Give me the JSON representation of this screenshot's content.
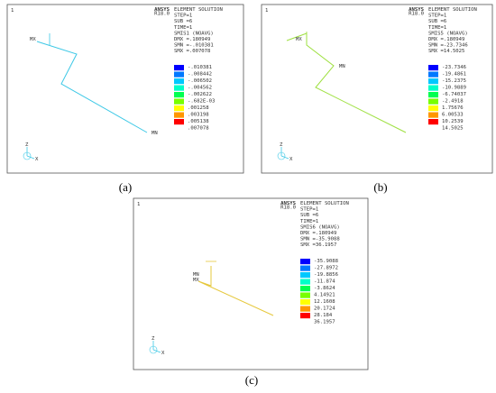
{
  "panels": [
    {
      "caption": "(a)",
      "logo": "ANSYS",
      "version": "R18.0",
      "view": "1",
      "header": [
        "ELEMENT SOLUTION",
        "STEP=1",
        "SUB =6",
        "TIME=1",
        "SMIS1    (NOAVG)",
        "DMX =.180949",
        "SMN =-.010381",
        "SMX =.007078"
      ],
      "legend": {
        "colors": [
          "#0000ff",
          "#0078ff",
          "#00c8ff",
          "#00ffc8",
          "#00ff50",
          "#78ff00",
          "#ffff00",
          "#ff9600",
          "#ff0000"
        ],
        "values": [
          "-.010381",
          "-.008442",
          "-.006502",
          "-.004562",
          "-.002622",
          "-.682E-03",
          ".001258",
          ".003198",
          ".005138",
          ".007078"
        ]
      },
      "max_label": "MX",
      "min_label": "MN",
      "line_color": "#3cc8e6",
      "axes": [
        "Z",
        "X"
      ]
    },
    {
      "caption": "(b)",
      "logo": "ANSYS",
      "version": "R18.0",
      "view": "1",
      "header": [
        "ELEMENT SOLUTION",
        "STEP=1",
        "SUB =6",
        "TIME=1",
        "SMIS5    (NOAVG)",
        "DMX =.180949",
        "SMN =-23.7346",
        "SMX =14.5025"
      ],
      "legend": {
        "colors": [
          "#0000ff",
          "#0078ff",
          "#00c8ff",
          "#00ffc8",
          "#00ff50",
          "#78ff00",
          "#ffff00",
          "#ff9600",
          "#ff0000"
        ],
        "values": [
          "-23.7346",
          "-19.4861",
          "-15.2375",
          "-10.9889",
          "-6.74037",
          "-2.4918",
          "1.75676",
          "6.00533",
          "10.2539",
          "14.5025"
        ]
      },
      "max_label": "MX",
      "min_label": "MN",
      "line_color": "#9ee040",
      "axes": [
        "Z",
        "X"
      ]
    },
    {
      "caption": "(c)",
      "logo": "ANSYS",
      "version": "R18.0",
      "view": "1",
      "header": [
        "ELEMENT SOLUTION",
        "STEP=1",
        "SUB =6",
        "TIME=1",
        "SMIS6    (NOAVG)",
        "DMX =.180949",
        "SMN =-35.9088",
        "SMX =36.1957"
      ],
      "legend": {
        "colors": [
          "#0000ff",
          "#0078ff",
          "#00c8ff",
          "#00ffc8",
          "#00ff50",
          "#78ff00",
          "#ffff00",
          "#ff9600",
          "#ff0000"
        ],
        "values": [
          "-35.9088",
          "-27.8972",
          "-19.8856",
          "-11.874",
          "-3.8624",
          "4.14921",
          "12.1608",
          "20.1724",
          "28.184",
          "36.1957"
        ]
      },
      "max_label": "MX",
      "min_label": "MN",
      "line_color": "#e6c83c",
      "axes": [
        "Z",
        "X"
      ]
    }
  ]
}
